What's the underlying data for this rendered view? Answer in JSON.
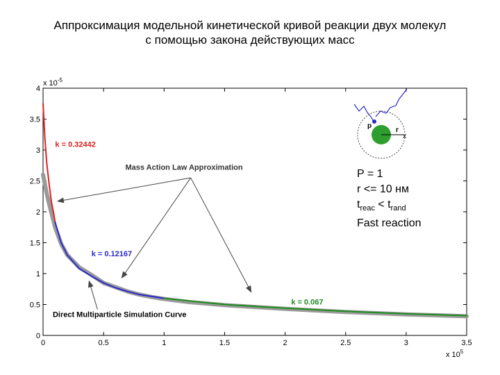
{
  "title_line1": "Аппроксимация модельной кинетической кривой реакции двух молекул",
  "title_line2": "с помощью закона действующих масс",
  "chart_data": {
    "type": "line",
    "xlim": [
      0,
      3.5
    ],
    "ylim": [
      0,
      4
    ],
    "x_ticks": [
      "0",
      "0.5",
      "1",
      "1.5",
      "2",
      "2.5",
      "3",
      "3.5"
    ],
    "y_ticks": [
      "0",
      "0.5",
      "1",
      "1.5",
      "2",
      "2.5",
      "3",
      "3.5",
      "4"
    ],
    "x_scale_label": "x 10",
    "x_scale_exp": "5",
    "y_scale_label": "x 10",
    "y_scale_exp": "-5",
    "grid": false,
    "series": [
      {
        "color": "#9a9a9a",
        "points": [
          [
            0,
            2.6
          ],
          [
            0.03,
            2.3
          ],
          [
            0.06,
            2.05
          ],
          [
            0.1,
            1.75
          ],
          [
            0.15,
            1.48
          ],
          [
            0.2,
            1.3
          ],
          [
            0.3,
            1.1
          ],
          [
            0.4,
            0.98
          ],
          [
            0.5,
            0.85
          ],
          [
            0.6,
            0.78
          ],
          [
            0.7,
            0.71
          ],
          [
            0.8,
            0.66
          ],
          [
            0.9,
            0.62
          ],
          [
            1.0,
            0.59
          ],
          [
            1.2,
            0.54
          ],
          [
            1.5,
            0.49
          ],
          [
            2.0,
            0.43
          ],
          [
            2.5,
            0.38
          ],
          [
            3.0,
            0.34
          ],
          [
            3.5,
            0.31
          ]
        ]
      },
      {
        "color": "#e02020",
        "points": [
          [
            0,
            3.75
          ],
          [
            0.015,
            3.2
          ],
          [
            0.03,
            2.8
          ],
          [
            0.05,
            2.45
          ],
          [
            0.07,
            2.15
          ],
          [
            0.09,
            1.95
          ],
          [
            0.1,
            1.83
          ]
        ]
      },
      {
        "color": "#2a2acc",
        "points": [
          [
            0.1,
            1.83
          ],
          [
            0.15,
            1.5
          ],
          [
            0.2,
            1.3
          ],
          [
            0.3,
            1.08
          ],
          [
            0.4,
            0.96
          ],
          [
            0.5,
            0.85
          ],
          [
            0.6,
            0.77
          ],
          [
            0.7,
            0.71
          ],
          [
            0.8,
            0.66
          ],
          [
            0.9,
            0.63
          ],
          [
            1.0,
            0.6
          ]
        ]
      },
      {
        "color": "#1e8c1e",
        "points": [
          [
            1.0,
            0.6
          ],
          [
            1.25,
            0.55
          ],
          [
            1.5,
            0.5
          ],
          [
            2.0,
            0.44
          ],
          [
            2.5,
            0.39
          ],
          [
            3.0,
            0.35
          ],
          [
            3.5,
            0.32
          ]
        ]
      }
    ],
    "annotations": [
      {
        "text": "k = 0.32442",
        "color": "#e02020",
        "x": 0.1,
        "y": 3.05
      },
      {
        "text": "k = 0.12167",
        "color": "#2a2acc",
        "x": 0.4,
        "y": 1.28
      },
      {
        "text": "k = 0.067",
        "color": "#1e8c1e",
        "x": 2.05,
        "y": 0.5
      },
      {
        "text": "Mass Action Law Approximation",
        "color": "#333333",
        "x": 0.68,
        "y": 2.68
      },
      {
        "text": "Direct Multiparticle Simulation Curve",
        "color": "#000000",
        "x": 0.08,
        "y": 0.3
      }
    ],
    "arrows": [
      {
        "from": [
          1.22,
          2.55
        ],
        "to": [
          0.12,
          2.17
        ]
      },
      {
        "from": [
          1.22,
          2.55
        ],
        "to": [
          0.65,
          0.93
        ]
      },
      {
        "from": [
          1.22,
          2.55
        ],
        "to": [
          1.72,
          0.7
        ]
      },
      {
        "from": [
          0.45,
          0.42
        ],
        "to": [
          0.38,
          0.88
        ]
      }
    ]
  },
  "diagram": {
    "label_p": "p",
    "label_r": "r",
    "label_x": "x"
  },
  "info": {
    "line1": "P = 1",
    "line2": "r <= 10 нм",
    "t_reac_main": "t",
    "t_reac_sub": "reac",
    "t_lt": " < t",
    "t_rand_sub": "rand",
    "line4": "Fast reaction"
  }
}
